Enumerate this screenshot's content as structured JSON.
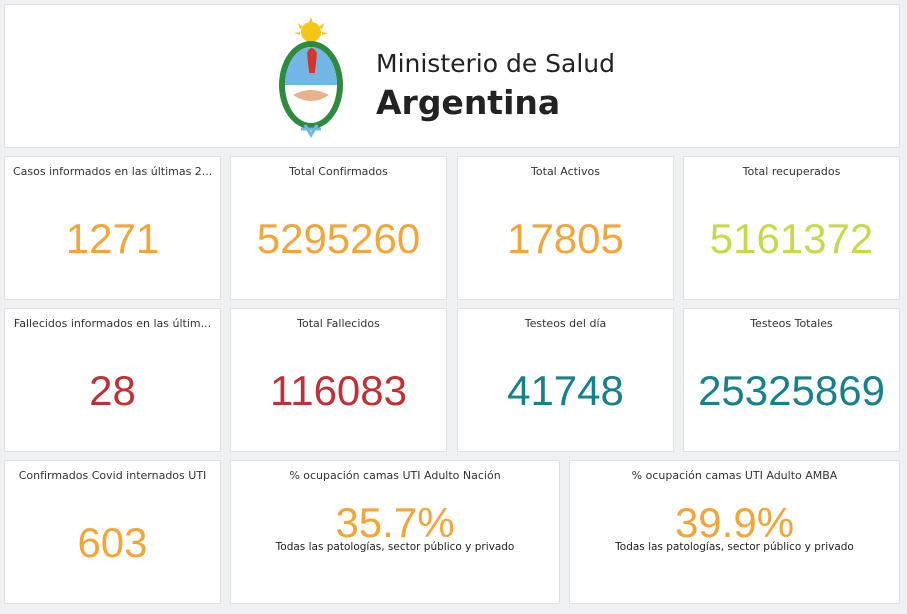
{
  "header": {
    "title": "Ministerio de Salud",
    "subtitle": "Argentina"
  },
  "cards": [
    {
      "title": "Casos informados en las últimas 2...",
      "value": "1271"
    },
    {
      "title": "Total Confirmados",
      "value": "5295260"
    },
    {
      "title": "Total Activos",
      "value": "17805"
    },
    {
      "title": "Total recuperados",
      "value": "5161372"
    },
    {
      "title": "Fallecidos informados en las últim...",
      "value": "28"
    },
    {
      "title": "Total Fallecidos",
      "value": "116083"
    },
    {
      "title": "Testeos del día",
      "value": "41748"
    },
    {
      "title": "Testeos Totales",
      "value": "25325869"
    },
    {
      "title": "Confirmados Covid internados UTI",
      "value": "603"
    },
    {
      "title": "% ocupación camas UTI Adulto Nación",
      "value": "35.7%",
      "subtitle": "Todas las patologías, sector público y privado"
    },
    {
      "title": "% ocupación camas UTI Adulto AMBA",
      "value": "39.9%",
      "subtitle": "Todas las patologías, sector público y privado"
    }
  ]
}
